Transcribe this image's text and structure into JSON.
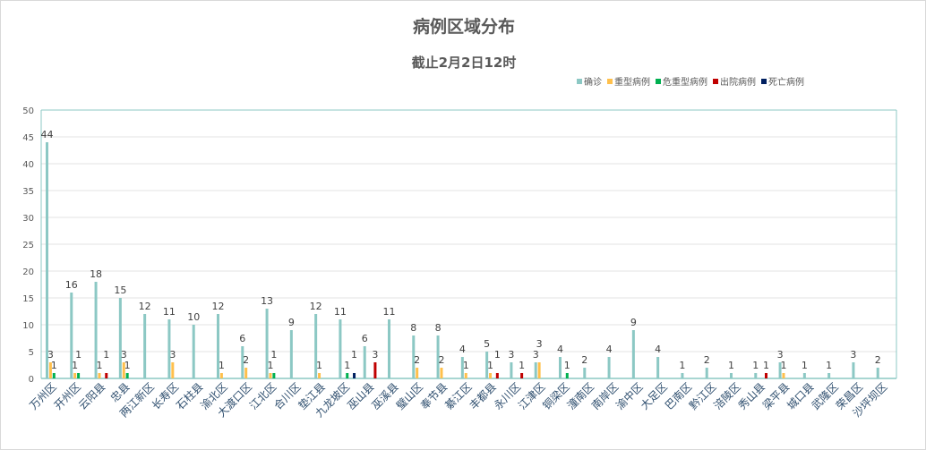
{
  "chart_data": {
    "type": "bar",
    "title": "病例区域分布",
    "subtitle": "截止2月2日12时",
    "ylim": [
      0,
      50
    ],
    "yticks": [
      0,
      5,
      10,
      15,
      20,
      25,
      30,
      35,
      40,
      45,
      50
    ],
    "grid": true,
    "legend_position": "top-right",
    "categories": [
      "万州区",
      "开州区",
      "云阳县",
      "忠县",
      "两江新区",
      "长寿区",
      "石柱县",
      "渝北区",
      "大渡口区",
      "江北区",
      "合川区",
      "垫江县",
      "九龙坡区",
      "巫山县",
      "巫溪县",
      "璧山区",
      "奉节县",
      "綦江区",
      "丰都县",
      "永川区",
      "江津区",
      "铜梁区",
      "潼南区",
      "南岸区",
      "渝中区",
      "大足区",
      "巴南区",
      "黔江区",
      "涪陵区",
      "秀山县",
      "梁平县",
      "城口县",
      "武隆区",
      "荣昌区",
      "沙坪坝区"
    ],
    "series": [
      {
        "name": "确诊",
        "color": "#8cc8c4",
        "values": [
          44,
          16,
          18,
          15,
          12,
          11,
          10,
          12,
          6,
          13,
          9,
          12,
          11,
          6,
          11,
          8,
          8,
          4,
          5,
          3,
          3,
          4,
          2,
          4,
          9,
          4,
          1,
          2,
          1,
          1,
          3,
          1,
          1,
          3,
          2
        ]
      },
      {
        "name": "重型病例",
        "color": "#ffc04c",
        "values": [
          3,
          1,
          1,
          3,
          0,
          3,
          0,
          1,
          2,
          1,
          0,
          1,
          0,
          0,
          0,
          2,
          2,
          1,
          1,
          0,
          3,
          0,
          0,
          0,
          0,
          0,
          0,
          0,
          0,
          0,
          1,
          0,
          0,
          0,
          0
        ]
      },
      {
        "name": "危重型病例",
        "color": "#00b050",
        "values": [
          1,
          1,
          0,
          1,
          0,
          0,
          0,
          0,
          0,
          1,
          0,
          0,
          1,
          0,
          0,
          0,
          0,
          0,
          0,
          0,
          0,
          1,
          0,
          0,
          0,
          0,
          0,
          0,
          0,
          0,
          0,
          0,
          0,
          0,
          0
        ]
      },
      {
        "name": "出院病例",
        "color": "#c00000",
        "values": [
          0,
          0,
          1,
          0,
          0,
          0,
          0,
          0,
          0,
          0,
          0,
          0,
          0,
          3,
          0,
          0,
          0,
          0,
          1,
          1,
          0,
          0,
          0,
          0,
          0,
          0,
          0,
          0,
          0,
          1,
          0,
          0,
          0,
          0,
          0
        ]
      },
      {
        "name": "死亡病例",
        "color": "#002060",
        "values": [
          0,
          0,
          0,
          0,
          0,
          0,
          0,
          0,
          0,
          0,
          0,
          0,
          1,
          0,
          0,
          0,
          0,
          0,
          0,
          0,
          0,
          0,
          0,
          0,
          0,
          0,
          0,
          0,
          0,
          0,
          0,
          0,
          0,
          0,
          0
        ]
      }
    ]
  }
}
